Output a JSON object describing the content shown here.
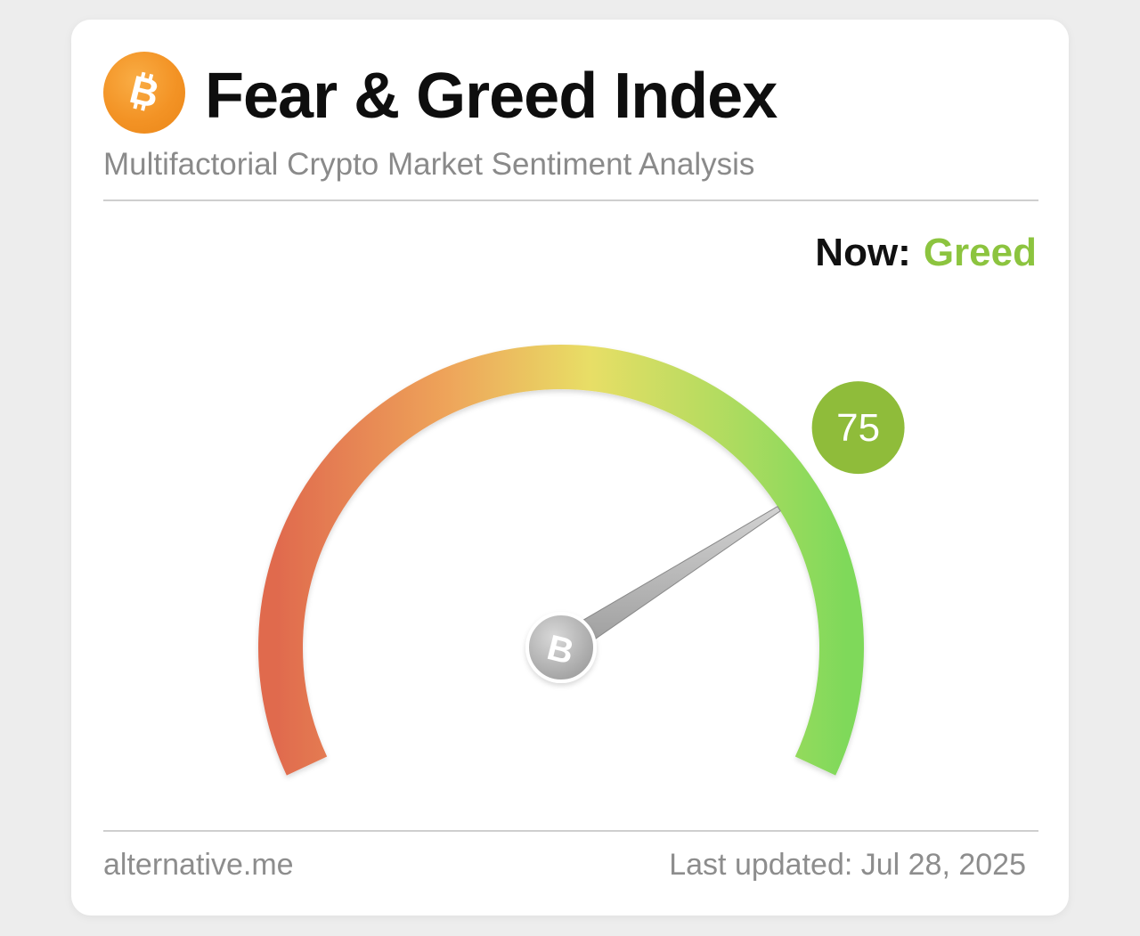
{
  "header": {
    "logo_icon": "bitcoin-icon",
    "title": "Fear & Greed Index",
    "subtitle": "Multifactorial Crypto Market Sentiment Analysis"
  },
  "status": {
    "now_label": "Now:",
    "now_value": "Greed",
    "now_color": "#8cc43f"
  },
  "gauge": {
    "value": 75,
    "min": 0,
    "max": 100,
    "value_label": "75",
    "badge_color": "#8fbc3a",
    "center_icon": "bitcoin-icon",
    "gradient_colors": [
      "#e06a4e",
      "#eea45a",
      "#e8de66",
      "#7fd95a"
    ]
  },
  "footer": {
    "source": "alternative.me",
    "updated": "Last updated: Jul 28, 2025"
  }
}
